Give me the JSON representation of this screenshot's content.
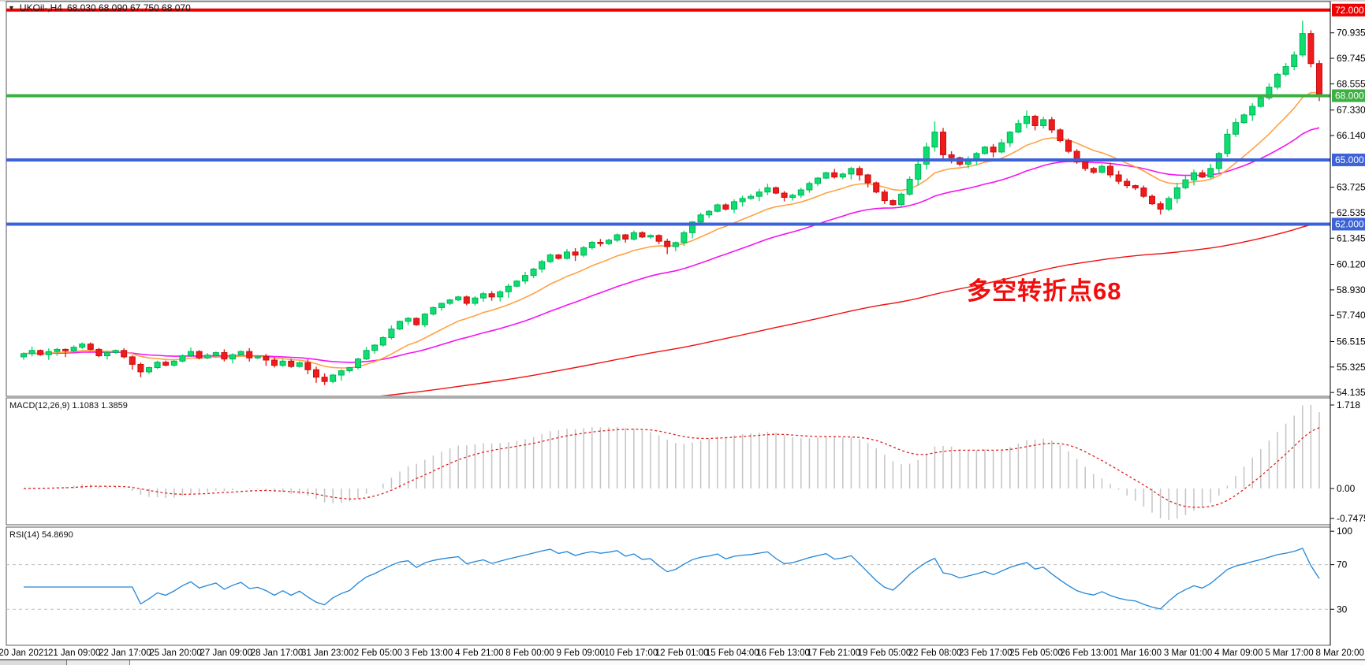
{
  "title": {
    "symbol": "UKOil-,H4",
    "ohlc": "68.030 68.090 67.750 68.070"
  },
  "annotation": {
    "text": "多空转折点68",
    "color": "#f20c0c"
  },
  "macd_panel": {
    "label": "MACD(12,26,9)",
    "values": "1.1083 1.3859",
    "axis_labels": [
      "1.718",
      "0.00",
      "-0.7475"
    ]
  },
  "rsi_panel": {
    "label": "RSI(14)",
    "value": "54.8690",
    "axis_labels": [
      "100",
      "70",
      "30"
    ],
    "levels": [
      70,
      30
    ]
  },
  "chart_data": {
    "type": "candlestick",
    "symbol": "UKOil-,H4",
    "timeframe": "H4",
    "last_ohlc": {
      "open": 68.03,
      "high": 68.09,
      "low": 67.75,
      "close": 68.07
    },
    "price_axis_ticks": [
      70.935,
      69.745,
      68.555,
      67.33,
      66.14,
      63.725,
      62.535,
      61.345,
      60.12,
      58.93,
      57.74,
      56.515,
      55.325,
      54.135
    ],
    "hlines": [
      {
        "price": 72.0,
        "label": "72.000",
        "color": "#ee0000",
        "width": 4
      },
      {
        "price": 68.0,
        "label": "68.000",
        "color": "#3cb043",
        "width": 4
      },
      {
        "price": 65.0,
        "label": "65.000",
        "color": "#3b62d6",
        "width": 4
      },
      {
        "price": 62.0,
        "label": "62.000",
        "color": "#3b62d6",
        "width": 4
      }
    ],
    "x_labels": [
      "20 Jan 2021",
      "21 Jan 09:00",
      "22 Jan 17:00",
      "25 Jan 20:00",
      "27 Jan 09:00",
      "28 Jan 17:00",
      "31 Jan 23:00",
      "2 Feb 05:00",
      "3 Feb 13:00",
      "4 Feb 21:00",
      "8 Feb 00:00",
      "9 Feb 09:00",
      "10 Feb 17:00",
      "12 Feb 01:00",
      "15 Feb 04:00",
      "16 Feb 13:00",
      "17 Feb 21:00",
      "19 Feb 05:00",
      "22 Feb 08:00",
      "23 Feb 17:00",
      "25 Feb 05:00",
      "26 Feb 13:00",
      "1 Mar 16:00",
      "3 Mar 01:00",
      "4 Mar 09:00",
      "5 Mar 17:00",
      "8 Mar 20:00"
    ],
    "closes": [
      55.95,
      56.1,
      55.9,
      56.05,
      56.15,
      56.08,
      56.25,
      56.4,
      56.15,
      55.85,
      56.0,
      56.1,
      55.8,
      55.45,
      55.1,
      55.3,
      55.55,
      55.41,
      55.6,
      55.85,
      56.05,
      55.75,
      55.88,
      56.0,
      55.7,
      55.9,
      56.05,
      55.75,
      55.81,
      55.65,
      55.4,
      55.6,
      55.35,
      55.53,
      55.2,
      54.85,
      54.65,
      54.95,
      55.15,
      55.3,
      55.7,
      56.1,
      56.35,
      56.7,
      57.1,
      57.46,
      57.6,
      57.3,
      57.8,
      58.1,
      58.3,
      58.46,
      58.6,
      58.3,
      58.55,
      58.75,
      58.6,
      58.84,
      59.1,
      59.34,
      59.6,
      59.9,
      60.25,
      60.56,
      60.4,
      60.7,
      60.55,
      60.9,
      61.15,
      61.09,
      61.25,
      61.5,
      61.3,
      61.6,
      61.4,
      61.47,
      61.2,
      60.95,
      61.14,
      61.6,
      62.1,
      62.43,
      62.6,
      62.9,
      62.7,
      63.05,
      63.2,
      63.3,
      63.5,
      63.7,
      63.45,
      63.25,
      63.35,
      63.6,
      63.9,
      64.15,
      64.4,
      64.2,
      64.34,
      64.6,
      64.3,
      63.93,
      63.5,
      63.1,
      62.91,
      63.4,
      64.1,
      64.8,
      65.6,
      66.3,
      65.24,
      65.1,
      64.8,
      65.05,
      65.3,
      65.6,
      65.37,
      65.8,
      66.3,
      66.7,
      67.04,
      66.6,
      66.88,
      66.4,
      65.9,
      65.4,
      64.9,
      64.6,
      64.42,
      64.7,
      64.3,
      64.0,
      63.8,
      63.69,
      63.3,
      62.95,
      62.7,
      63.2,
      63.7,
      64.07,
      64.4,
      64.2,
      64.6,
      65.3,
      66.2,
      66.74,
      67.1,
      67.5,
      67.9,
      68.4,
      69.0,
      69.36,
      69.9,
      70.9,
      69.5,
      68.07
    ],
    "first_open": 55.8,
    "wick_overrides": {
      "14": {
        "low": 54.85
      },
      "36": {
        "low": 54.48
      },
      "77": {
        "low": 60.6
      },
      "109": {
        "high": 66.8
      },
      "120": {
        "high": 67.3
      },
      "153": {
        "high": 71.5
      },
      "155": {
        "low": 67.75
      }
    },
    "indicators": {
      "macd": [
        12,
        26,
        9
      ],
      "rsi": 14,
      "ma_fast": 13,
      "ma_mid": 34,
      "ma_slow": 150,
      "ma_slow_seed": 52.6
    },
    "colors": {
      "up": "#0edd70",
      "up_edge": "#00b357",
      "down": "#ee1c1c",
      "down_edge": "#c80f0f",
      "ma_fast": "#ffa245",
      "ma_mid": "#f413f4",
      "ma_slow": "#ee1111",
      "macd_hist": "#c4c4c4",
      "macd_signal": "#dd2222",
      "rsi_line": "#2186d8",
      "rsi_level": "#bdbdbd",
      "axis_text": "#000000",
      "border": "#5a5a5a"
    }
  }
}
